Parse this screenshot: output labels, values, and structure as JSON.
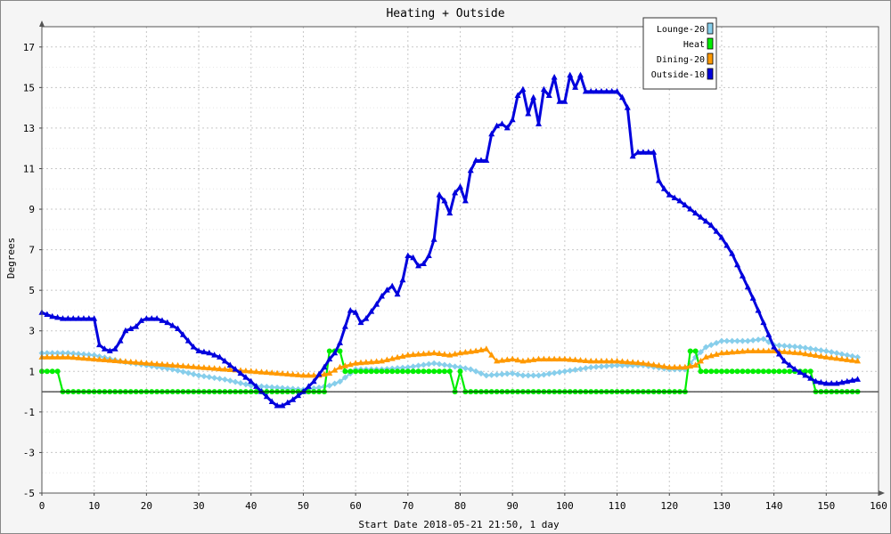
{
  "chart_data": {
    "type": "line",
    "title": "Heating + Outside",
    "xlabel": "Start Date 2018-05-21 21:50, 1 day",
    "ylabel": "Degrees",
    "xlim": [
      0,
      160
    ],
    "ylim": [
      -5,
      18
    ],
    "xticks": [
      0,
      10,
      20,
      30,
      40,
      50,
      60,
      70,
      80,
      90,
      100,
      110,
      120,
      130,
      140,
      150,
      160
    ],
    "yticks": [
      -5,
      -3,
      -1,
      1,
      3,
      5,
      7,
      9,
      11,
      13,
      15,
      17
    ],
    "grid": true,
    "legend_position": "top-right",
    "series": [
      {
        "name": "Lounge-20",
        "color": "#87ceeb",
        "marker": "diamond",
        "x": [
          0,
          5,
          10,
          15,
          20,
          25,
          30,
          35,
          40,
          45,
          50,
          53,
          55,
          57,
          60,
          65,
          70,
          75,
          80,
          82,
          85,
          90,
          92,
          95,
          100,
          105,
          110,
          115,
          120,
          123,
          125,
          127,
          130,
          135,
          138,
          140,
          145,
          150,
          156
        ],
        "values": [
          1.9,
          1.9,
          1.8,
          1.5,
          1.3,
          1.1,
          0.8,
          0.6,
          0.3,
          0.2,
          0.1,
          0.2,
          0.3,
          0.5,
          1.1,
          1.1,
          1.2,
          1.4,
          1.2,
          1.1,
          0.8,
          0.9,
          0.8,
          0.8,
          1.0,
          1.2,
          1.3,
          1.3,
          1.1,
          1.1,
          1.7,
          2.2,
          2.5,
          2.5,
          2.6,
          2.3,
          2.2,
          2.0,
          1.7
        ]
      },
      {
        "name": "Heat",
        "color": "#00ee00",
        "marker": "circle",
        "x": [
          0,
          3,
          4,
          10,
          20,
          30,
          40,
          50,
          54,
          55,
          57,
          58,
          60,
          70,
          78,
          79,
          80,
          81,
          90,
          100,
          110,
          120,
          123,
          124,
          125,
          126,
          130,
          140,
          147,
          148,
          150,
          156
        ],
        "values": [
          1,
          1,
          0,
          0,
          0,
          0,
          0,
          0,
          0,
          2,
          2,
          1,
          1,
          1,
          1,
          0,
          1,
          0,
          0,
          0,
          0,
          0,
          0,
          2,
          2,
          1,
          1,
          1,
          1,
          0,
          0,
          0
        ]
      },
      {
        "name": "Dining-20",
        "color": "#ff9900",
        "marker": "triangle",
        "x": [
          0,
          5,
          10,
          15,
          20,
          25,
          30,
          35,
          40,
          45,
          50,
          53,
          55,
          57,
          60,
          65,
          70,
          75,
          78,
          80,
          83,
          85,
          87,
          90,
          92,
          95,
          100,
          105,
          110,
          115,
          120,
          123,
          125,
          127,
          130,
          135,
          140,
          145,
          150,
          156
        ],
        "values": [
          1.7,
          1.7,
          1.6,
          1.5,
          1.4,
          1.3,
          1.2,
          1.1,
          1.0,
          0.9,
          0.8,
          0.8,
          0.9,
          1.2,
          1.4,
          1.5,
          1.8,
          1.9,
          1.8,
          1.9,
          2.0,
          2.1,
          1.5,
          1.6,
          1.5,
          1.6,
          1.6,
          1.5,
          1.5,
          1.4,
          1.2,
          1.2,
          1.3,
          1.7,
          1.9,
          2.0,
          2.0,
          1.9,
          1.7,
          1.5
        ]
      },
      {
        "name": "Outside-10",
        "color": "#0000dd",
        "marker": "triangle",
        "x": [
          0,
          2,
          4,
          6,
          8,
          10,
          11,
          12,
          13,
          14,
          15,
          16,
          18,
          19,
          20,
          22,
          24,
          26,
          28,
          29,
          30,
          32,
          34,
          36,
          38,
          40,
          42,
          44,
          45,
          46,
          48,
          50,
          52,
          54,
          55,
          56,
          57,
          58,
          59,
          60,
          61,
          62,
          64,
          65,
          66,
          67,
          68,
          69,
          70,
          71,
          72,
          73,
          74,
          75,
          76,
          77,
          78,
          79,
          80,
          81,
          82,
          83,
          84,
          85,
          86,
          87,
          88,
          89,
          90,
          91,
          92,
          93,
          94,
          95,
          96,
          97,
          98,
          99,
          100,
          101,
          102,
          103,
          104,
          106,
          108,
          110,
          111,
          112,
          113,
          114,
          116,
          117,
          118,
          119,
          120,
          122,
          124,
          126,
          128,
          130,
          132,
          134,
          136,
          138,
          140,
          142,
          144,
          146,
          148,
          150,
          152,
          154,
          156
        ],
        "values": [
          3.9,
          3.7,
          3.6,
          3.6,
          3.6,
          3.6,
          2.3,
          2.1,
          2.0,
          2.1,
          2.5,
          3.0,
          3.2,
          3.5,
          3.6,
          3.6,
          3.4,
          3.1,
          2.5,
          2.2,
          2.0,
          1.9,
          1.7,
          1.3,
          0.9,
          0.5,
          0.0,
          -0.5,
          -0.7,
          -0.7,
          -0.4,
          0.0,
          0.5,
          1.2,
          1.6,
          1.9,
          2.4,
          3.2,
          4.0,
          3.9,
          3.4,
          3.6,
          4.3,
          4.7,
          5.0,
          5.2,
          4.8,
          5.5,
          6.7,
          6.6,
          6.2,
          6.3,
          6.7,
          7.5,
          9.7,
          9.4,
          8.8,
          9.8,
          10.1,
          9.4,
          10.9,
          11.4,
          11.4,
          11.4,
          12.7,
          13.1,
          13.2,
          13.0,
          13.4,
          14.6,
          14.9,
          13.7,
          14.5,
          13.2,
          14.9,
          14.6,
          15.5,
          14.3,
          14.3,
          15.6,
          15.0,
          15.6,
          14.8,
          14.8,
          14.8,
          14.8,
          14.5,
          14.0,
          11.6,
          11.8,
          11.8,
          11.8,
          10.4,
          10.0,
          9.7,
          9.4,
          9.0,
          8.6,
          8.2,
          7.6,
          6.8,
          5.7,
          4.6,
          3.4,
          2.2,
          1.5,
          1.1,
          0.8,
          0.5,
          0.4,
          0.4,
          0.5,
          0.6
        ]
      }
    ]
  }
}
